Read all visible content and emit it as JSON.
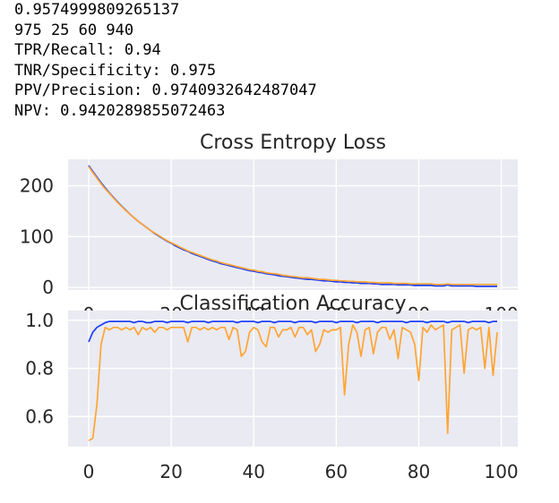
{
  "output_lines": [
    "0.9574999809265137",
    "975 25 60 940",
    "TPR/Recall: 0.94",
    "TNR/Specificity: 0.975",
    "PPV/Precision: 0.9740932642487047",
    "NPV: 0.9420289855072463"
  ],
  "colors": {
    "train": "#1f3ff5",
    "val": "#ffa533",
    "panel": "#eaeaf2",
    "grid": "#ffffff"
  },
  "chart_data": [
    {
      "type": "line",
      "title": "Cross Entropy Loss",
      "xlabel": "",
      "ylabel": "",
      "xlim": [
        -5,
        104
      ],
      "ylim": [
        -5,
        252
      ],
      "xticks": [
        "0",
        "20",
        "40",
        "60",
        "80",
        "100"
      ],
      "yticks": [
        "0",
        "100",
        "200"
      ],
      "grid": true,
      "series": [
        {
          "x0": 0,
          "dx": 1,
          "values": [
            240,
            228,
            217,
            206,
            196,
            186,
            177,
            168,
            160,
            152,
            144,
            137,
            130,
            124,
            118,
            112,
            106,
            101,
            96,
            91,
            87,
            82,
            78,
            74,
            71,
            67,
            64,
            61,
            58,
            55,
            52,
            50,
            47,
            45,
            43,
            41,
            39,
            37,
            35,
            33,
            32,
            30,
            29,
            27,
            26,
            25,
            23,
            22,
            21,
            20,
            19,
            18,
            17,
            16,
            16,
            15,
            14,
            13,
            13,
            12,
            11,
            11,
            10,
            10,
            9,
            9,
            8,
            8,
            8,
            7,
            7,
            6,
            6,
            6,
            6,
            5,
            5,
            5,
            5,
            4,
            4,
            4,
            4,
            4,
            3,
            3,
            3,
            5,
            3,
            3,
            3,
            3,
            3,
            3,
            2,
            2,
            2,
            2,
            2,
            2
          ]
        },
        {
          "x0": 0,
          "dx": 1,
          "values": [
            238,
            226,
            215,
            204,
            194,
            185,
            176,
            167,
            159,
            151,
            144,
            137,
            130,
            124,
            118,
            112,
            107,
            102,
            97,
            92,
            88,
            84,
            80,
            76,
            72,
            69,
            66,
            63,
            60,
            57,
            54,
            52,
            49,
            47,
            45,
            43,
            41,
            39,
            37,
            35,
            34,
            32,
            31,
            29,
            28,
            27,
            26,
            24,
            23,
            22,
            21,
            20,
            19,
            19,
            18,
            17,
            16,
            16,
            15,
            14,
            14,
            13,
            13,
            12,
            12,
            11,
            11,
            11,
            10,
            10,
            9,
            9,
            9,
            9,
            8,
            8,
            8,
            8,
            7,
            7,
            7,
            7,
            7,
            7,
            6,
            6,
            6,
            7,
            6,
            6,
            6,
            6,
            6,
            6,
            6,
            6,
            6,
            6,
            6,
            6
          ]
        }
      ]
    },
    {
      "type": "line",
      "title": "Classification Accuracy",
      "xlabel": "",
      "ylabel": "",
      "xlim": [
        -5,
        104
      ],
      "ylim": [
        0.475,
        1.04
      ],
      "xticks": [
        "0",
        "20",
        "40",
        "60",
        "80",
        "100"
      ],
      "yticks": [
        "0.6",
        "0.8",
        "1.0"
      ],
      "grid": true,
      "series": [
        {
          "x0": 0,
          "dx": 1,
          "values": [
            0.91,
            0.95,
            0.97,
            0.98,
            0.99,
            0.995,
            0.995,
            0.995,
            0.995,
            0.995,
            0.995,
            0.99,
            0.995,
            0.995,
            0.99,
            0.99,
            0.995,
            0.995,
            0.995,
            0.99,
            0.995,
            0.995,
            0.995,
            0.995,
            0.99,
            0.995,
            0.995,
            0.995,
            0.995,
            0.99,
            0.995,
            0.995,
            0.995,
            0.995,
            0.995,
            0.995,
            0.99,
            0.995,
            0.995,
            0.995,
            0.995,
            0.99,
            0.995,
            0.995,
            0.995,
            0.99,
            0.995,
            0.995,
            0.995,
            0.995,
            0.99,
            0.995,
            0.995,
            0.995,
            0.995,
            0.99,
            0.995,
            0.995,
            0.995,
            0.995,
            0.99,
            0.995,
            0.995,
            0.995,
            0.995,
            0.99,
            0.995,
            0.995,
            0.995,
            0.995,
            0.99,
            0.995,
            0.995,
            0.995,
            0.995,
            0.995,
            0.995,
            0.99,
            0.995,
            0.995,
            0.995,
            0.995,
            0.99,
            0.995,
            0.995,
            0.995,
            0.995,
            0.99,
            0.995,
            0.995,
            0.995,
            0.995,
            0.99,
            0.995,
            0.995,
            0.995,
            0.995,
            0.99,
            0.995,
            0.995
          ]
        },
        {
          "x0": 0,
          "dx": 1,
          "values": [
            0.5,
            0.51,
            0.65,
            0.9,
            0.97,
            0.96,
            0.97,
            0.97,
            0.96,
            0.97,
            0.96,
            0.97,
            0.94,
            0.97,
            0.96,
            0.97,
            0.95,
            0.97,
            0.97,
            0.96,
            0.97,
            0.97,
            0.97,
            0.97,
            0.91,
            0.97,
            0.97,
            0.96,
            0.97,
            0.96,
            0.97,
            0.96,
            0.97,
            0.97,
            0.92,
            0.97,
            0.96,
            0.85,
            0.87,
            0.95,
            0.97,
            0.96,
            0.91,
            0.89,
            0.97,
            0.97,
            0.93,
            0.96,
            0.96,
            0.97,
            0.93,
            0.97,
            0.97,
            0.94,
            0.96,
            0.87,
            0.9,
            0.96,
            0.95,
            0.96,
            0.96,
            0.97,
            0.69,
            0.9,
            0.98,
            0.95,
            0.85,
            0.96,
            0.97,
            0.86,
            0.95,
            0.97,
            0.97,
            0.92,
            0.96,
            0.84,
            0.97,
            0.96,
            0.95,
            0.9,
            0.75,
            0.97,
            0.95,
            0.98,
            0.96,
            0.97,
            0.98,
            0.53,
            0.96,
            0.97,
            0.98,
            0.78,
            0.96,
            0.97,
            0.96,
            0.97,
            0.8,
            0.97,
            0.77,
            0.95
          ]
        }
      ]
    }
  ]
}
